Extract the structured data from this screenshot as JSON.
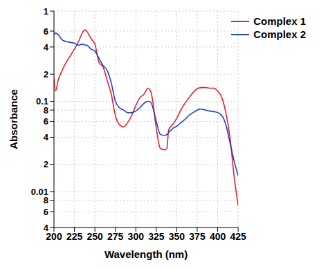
{
  "chart_data": {
    "type": "line",
    "x_label": "Wavelength (nm)",
    "y_label": "Absorbance",
    "x": [
      200,
      202,
      205,
      210,
      215,
      220,
      225,
      230,
      235,
      238,
      240,
      245,
      250,
      255,
      260,
      265,
      270,
      275,
      280,
      285,
      290,
      295,
      300,
      305,
      310,
      315,
      318,
      320,
      325,
      330,
      335,
      338,
      340,
      345,
      350,
      355,
      360,
      365,
      370,
      375,
      380,
      385,
      390,
      395,
      400,
      405,
      410,
      415,
      420,
      425
    ],
    "series": [
      {
        "name": "Complex 1",
        "color": "#e8202a",
        "values": [
          0.18,
          0.13,
          0.17,
          0.22,
          0.27,
          0.32,
          0.38,
          0.46,
          0.58,
          0.62,
          0.6,
          0.5,
          0.43,
          0.27,
          0.24,
          0.17,
          0.12,
          0.07,
          0.055,
          0.052,
          0.058,
          0.07,
          0.09,
          0.11,
          0.12,
          0.14,
          0.13,
          0.11,
          0.05,
          0.03,
          0.029,
          0.03,
          0.048,
          0.055,
          0.065,
          0.08,
          0.095,
          0.11,
          0.125,
          0.138,
          0.142,
          0.142,
          0.14,
          0.14,
          0.13,
          0.11,
          0.075,
          0.04,
          0.015,
          0.007
        ]
      },
      {
        "name": "Complex 2",
        "color": "#1f3fcf",
        "values": [
          0.55,
          0.57,
          0.55,
          0.48,
          0.46,
          0.45,
          0.44,
          0.42,
          0.43,
          0.42,
          0.42,
          0.38,
          0.36,
          0.3,
          0.25,
          0.22,
          0.16,
          0.1,
          0.085,
          0.08,
          0.075,
          0.075,
          0.078,
          0.085,
          0.095,
          0.1,
          0.098,
          0.09,
          0.06,
          0.043,
          0.042,
          0.043,
          0.045,
          0.05,
          0.053,
          0.058,
          0.063,
          0.07,
          0.075,
          0.08,
          0.082,
          0.08,
          0.078,
          0.077,
          0.075,
          0.07,
          0.055,
          0.035,
          0.022,
          0.015
        ]
      }
    ],
    "xlim": [
      200,
      425
    ],
    "xticks": [
      200,
      225,
      250,
      275,
      300,
      325,
      350,
      375,
      400,
      425
    ],
    "ylim": [
      0.004,
      1
    ],
    "yticks": [
      1,
      {
        "value": 0.6,
        "label": "6"
      },
      {
        "value": 0.4,
        "label": "4"
      },
      {
        "value": 0.2,
        "label": "2"
      },
      0.1,
      {
        "value": 0.08,
        "label": "8"
      },
      {
        "value": 0.06,
        "label": "6"
      },
      {
        "value": 0.04,
        "label": "4"
      },
      {
        "value": 0.02,
        "label": "2"
      },
      0.01,
      {
        "value": 0.008,
        "label": "8"
      },
      {
        "value": 0.006,
        "label": "6"
      },
      {
        "value": 0.004,
        "label": "4"
      }
    ],
    "log": "y",
    "grid": true,
    "legend": "upper right"
  }
}
